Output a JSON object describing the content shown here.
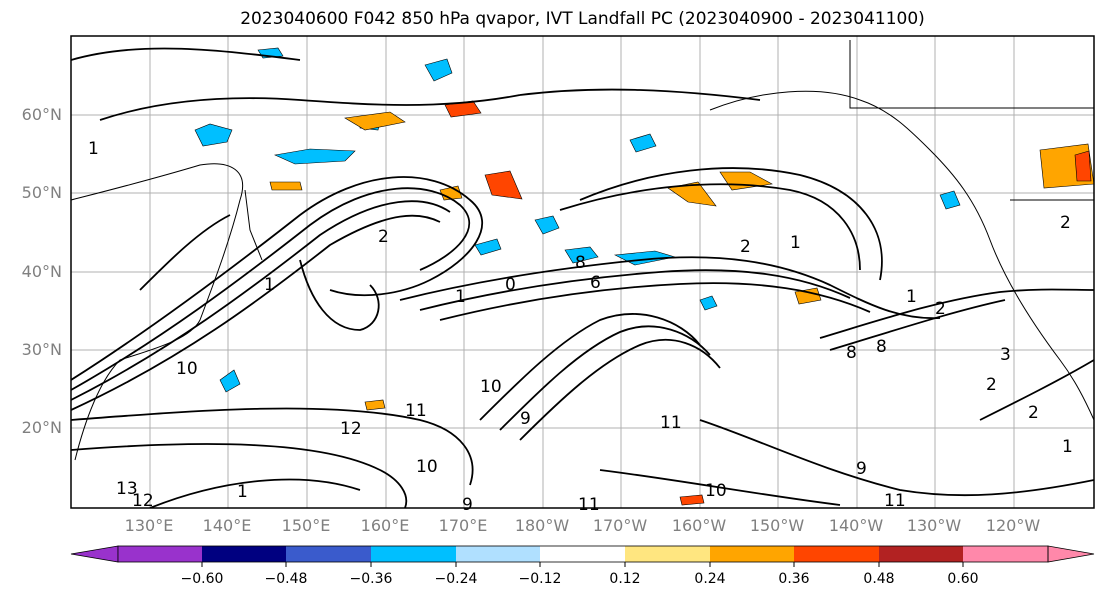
{
  "title": "2023040600 F042 850 hPa qvapor, IVT Landfall PC (2023040900 - 2023041100)",
  "lat_labels": [
    "60°N",
    "50°N",
    "40°N",
    "30°N",
    "20°N"
  ],
  "lon_labels": [
    "130°E",
    "140°E",
    "150°E",
    "160°E",
    "170°E",
    "180°W",
    "170°W",
    "160°W",
    "150°W",
    "140°W",
    "130°W",
    "120°W"
  ],
  "colorbar": {
    "ticks": [
      "−0.60",
      "−0.48",
      "−0.36",
      "−0.24",
      "−0.12",
      "0.12",
      "0.24",
      "0.36",
      "0.48",
      "0.60"
    ],
    "colors": [
      "#9932cc",
      "#000080",
      "#3a5bcc",
      "#00bfff",
      "#b0e0ff",
      "#ffffff",
      "#ffe680",
      "#ffa500",
      "#ff4500",
      "#b22222",
      "#ff88aa"
    ]
  },
  "contour_labels": [
    "2",
    "2",
    "1",
    "0",
    "2",
    "1",
    "6",
    "8",
    "1",
    "3",
    "1",
    "2",
    "1",
    "10",
    "11",
    "12",
    "10",
    "9",
    "11",
    "10",
    "9",
    "11",
    "13",
    "12",
    "1",
    "8",
    "10",
    "11",
    "9",
    "8",
    "2",
    "1",
    "2"
  ]
}
